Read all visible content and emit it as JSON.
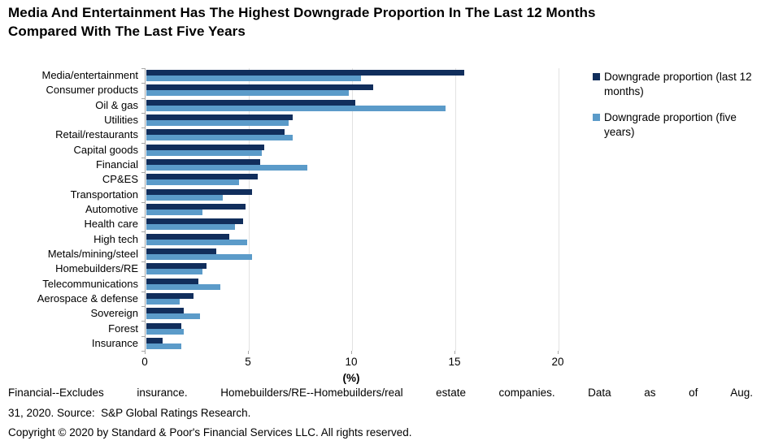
{
  "title": "Media And Entertainment Has The Highest Downgrade Proportion In The Last 12 Months Compared With The Last Five Years",
  "chart_data": {
    "type": "bar",
    "orientation": "horizontal",
    "title": "Media And Entertainment Has The Highest Downgrade Proportion In The Last 12 Months Compared With The Last Five Years",
    "categories": [
      "Media/entertainment",
      "Consumer products",
      "Oil & gas",
      "Utilities",
      "Retail/restaurants",
      "Capital goods",
      "Financial",
      "CP&ES",
      "Transportation",
      "Automotive",
      "Health care",
      "High tech",
      "Metals/mining/steel",
      "Homebuilders/RE",
      "Telecommunications",
      "Aerospace & defense",
      "Sovereign",
      "Forest",
      "Insurance"
    ],
    "series": [
      {
        "name": "Downgrade proportion (last 12 months)",
        "color": "#112e5c",
        "values": [
          15.4,
          11.0,
          10.1,
          7.1,
          6.7,
          5.7,
          5.5,
          5.4,
          5.1,
          4.8,
          4.7,
          4.0,
          3.4,
          2.9,
          2.5,
          2.3,
          1.8,
          1.7,
          0.8
        ]
      },
      {
        "name": "Downgrade proportion (five years)",
        "color": "#5b9bc9",
        "values": [
          10.4,
          9.8,
          14.5,
          6.9,
          7.1,
          5.6,
          7.8,
          4.5,
          3.7,
          2.7,
          4.3,
          4.9,
          5.1,
          2.7,
          3.6,
          1.6,
          2.6,
          1.8,
          1.7
        ]
      }
    ],
    "xlabel": "(%)",
    "xlim": [
      0,
      20
    ],
    "xticks": [
      0,
      5,
      10,
      15,
      20
    ],
    "grid": true,
    "legend_position": "right"
  },
  "legend": {
    "item1": "Downgrade proportion (last 12 months)",
    "item2": "Downgrade proportion (five years)"
  },
  "colors": {
    "bar_last_12_months": "#112e5c",
    "bar_five_years": "#5b9bc9",
    "gridline": "#e2e2e2",
    "axis": "#a6a6a6",
    "text": "#000000"
  },
  "footer": {
    "footnote_line1": "Financial--Excludes insurance. Homebuilders/RE--Homebuilders/real estate companies. Data as of Aug.",
    "footnote_line2": "31, 2020. Source:  S&P Global Ratings Research.",
    "copyright": "Copyright © 2020 by Standard & Poor's Financial Services LLC. All rights reserved."
  }
}
